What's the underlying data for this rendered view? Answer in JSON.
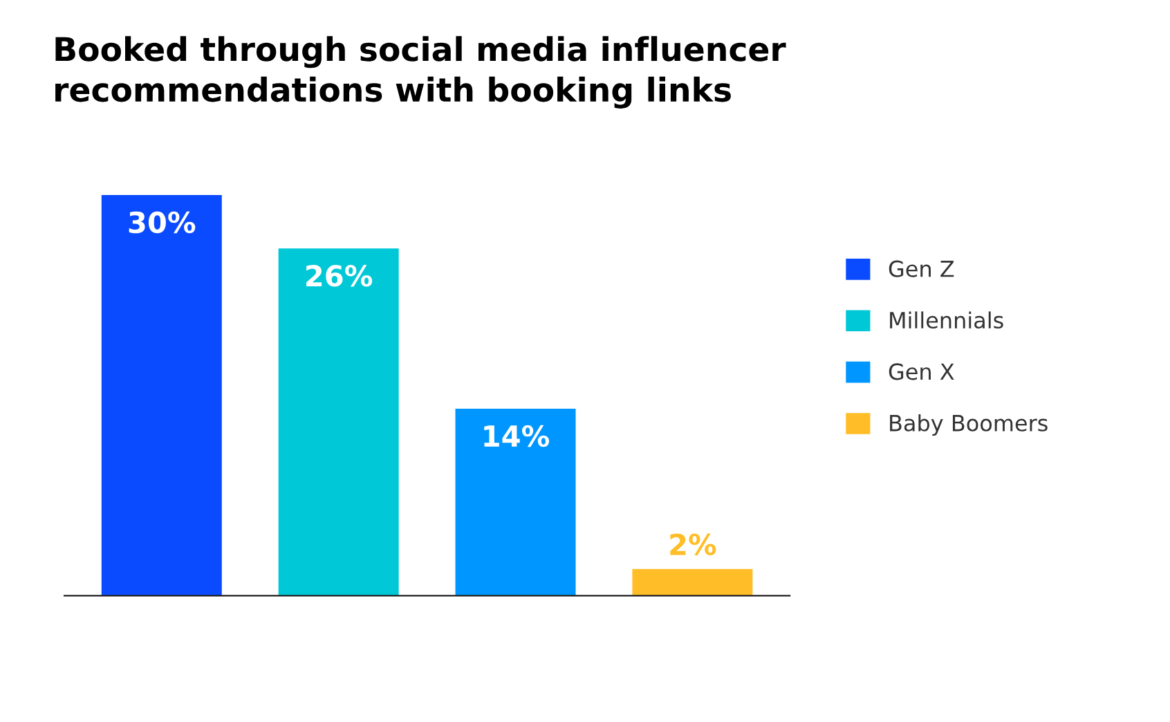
{
  "chart_data": {
    "type": "bar",
    "title": "Booked through social media influencer\nrecommendations with booking links",
    "categories": [
      null,
      null,
      null,
      null
    ],
    "stacked": true,
    "series": [
      {
        "name": "Gen Z",
        "color": "#0a4bff",
        "values": [
          30,
          null,
          null,
          null
        ],
        "value_labels": [
          "30%",
          null,
          null,
          null
        ]
      },
      {
        "name": "Millennials",
        "color": "#00c8d7",
        "values": [
          null,
          26,
          null,
          null
        ],
        "value_labels": [
          null,
          "26%",
          null,
          null
        ]
      },
      {
        "name": "Gen X",
        "color": "#0096ff",
        "values": [
          null,
          null,
          14,
          null
        ],
        "value_labels": [
          null,
          null,
          "14%",
          null
        ]
      },
      {
        "name": "Baby Boomers",
        "color": "#ffbe28",
        "values": [
          null,
          null,
          null,
          2
        ],
        "value_labels": [
          null,
          null,
          null,
          "2%"
        ]
      }
    ],
    "legend": "right",
    "grid": false
  }
}
